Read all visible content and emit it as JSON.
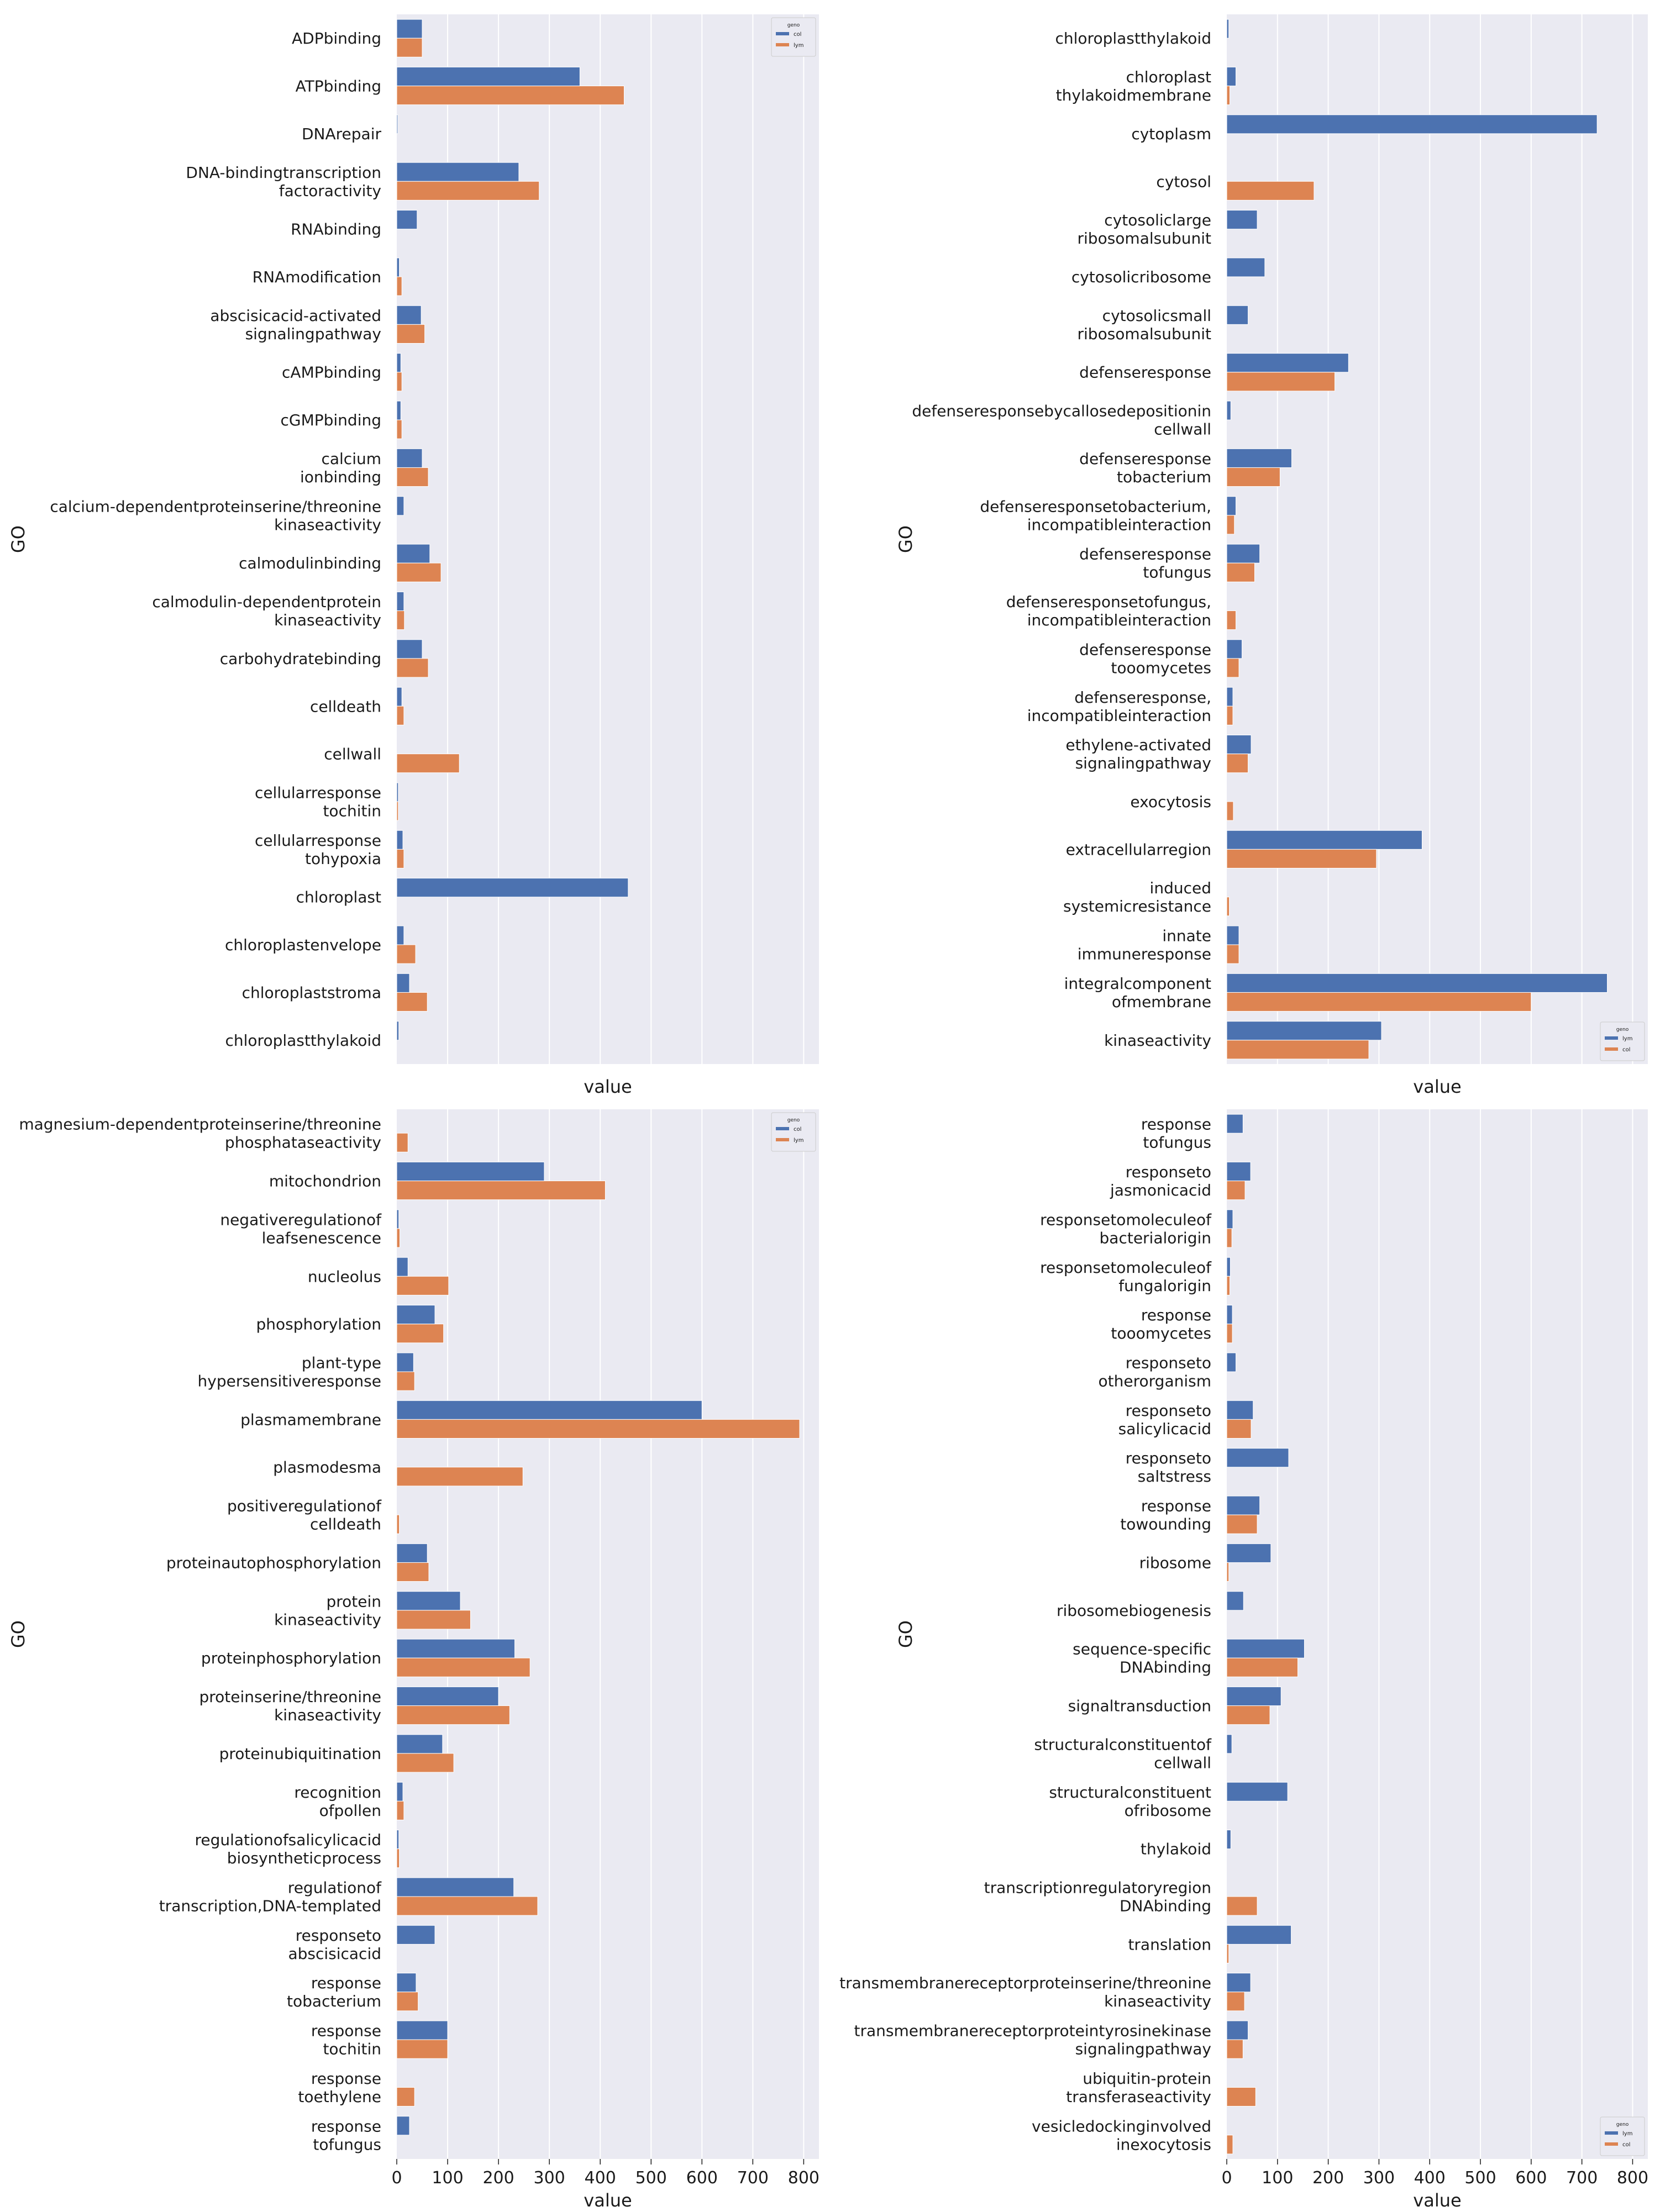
{
  "colors": {
    "background": "#eaeaf2",
    "grid": "#ffffff",
    "series_a": "#4c72b0",
    "series_b": "#dd8452",
    "text": "#1a1a1a"
  },
  "chart_data": [
    {
      "type": "bar",
      "orientation": "horizontal",
      "ylabel": "GO",
      "xlabel": "value",
      "xlim": [
        0,
        830
      ],
      "xticks_shown": false,
      "legend": {
        "title": "geno",
        "location": "top-right",
        "labels": [
          "col",
          "lym"
        ]
      },
      "series": [
        {
          "name": "col"
        },
        {
          "name": "lym"
        }
      ],
      "categories": [
        {
          "lines": [
            "ADPbinding"
          ],
          "values": [
            50,
            50
          ]
        },
        {
          "lines": [
            "ATPbinding"
          ],
          "values": [
            360,
            447
          ]
        },
        {
          "lines": [
            "DNArepair"
          ],
          "values": [
            2,
            0
          ]
        },
        {
          "lines": [
            "DNA-bindingtranscription",
            "factoractivity"
          ],
          "values": [
            240,
            280
          ]
        },
        {
          "lines": [
            "RNAbinding"
          ],
          "values": [
            40,
            0
          ]
        },
        {
          "lines": [
            "RNAmodification"
          ],
          "values": [
            5,
            10
          ]
        },
        {
          "lines": [
            "abscisicacid-activated",
            "signalingpathway"
          ],
          "values": [
            48,
            55
          ]
        },
        {
          "lines": [
            "cAMPbinding"
          ],
          "values": [
            8,
            10
          ]
        },
        {
          "lines": [
            "cGMPbinding"
          ],
          "values": [
            8,
            10
          ]
        },
        {
          "lines": [
            "calcium",
            "ionbinding"
          ],
          "values": [
            50,
            62
          ]
        },
        {
          "lines": [
            "calcium-dependentproteinserine/threonine",
            "kinaseactivity"
          ],
          "values": [
            14,
            0
          ]
        },
        {
          "lines": [
            "calmodulinbinding"
          ],
          "values": [
            65,
            87
          ]
        },
        {
          "lines": [
            "calmodulin-dependentprotein",
            "kinaseactivity"
          ],
          "values": [
            14,
            15
          ]
        },
        {
          "lines": [
            "carbohydratebinding"
          ],
          "values": [
            50,
            62
          ]
        },
        {
          "lines": [
            "celldeath"
          ],
          "values": [
            10,
            14
          ]
        },
        {
          "lines": [
            "cellwall"
          ],
          "values": [
            0,
            123
          ]
        },
        {
          "lines": [
            "cellularresponse",
            "tochitin"
          ],
          "values": [
            3,
            3
          ]
        },
        {
          "lines": [
            "cellularresponse",
            "tohypoxia"
          ],
          "values": [
            12,
            14
          ]
        },
        {
          "lines": [
            "chloroplast"
          ],
          "values": [
            455,
            0
          ]
        },
        {
          "lines": [
            "chloroplastenvelope"
          ],
          "values": [
            14,
            37
          ]
        },
        {
          "lines": [
            "chloroplaststroma"
          ],
          "values": [
            25,
            60
          ]
        },
        {
          "lines": [
            "chloroplastthylakoid"
          ],
          "values": [
            4,
            0
          ]
        }
      ]
    },
    {
      "type": "bar",
      "orientation": "horizontal",
      "ylabel": "GO",
      "xlabel": "value",
      "xlim": [
        0,
        830
      ],
      "xticks_shown": false,
      "legend": {
        "title": "geno",
        "location": "bottom-right",
        "labels": [
          "lym",
          "col"
        ]
      },
      "series": [
        {
          "name": "lym"
        },
        {
          "name": "col"
        }
      ],
      "categories": [
        {
          "lines": [
            "chloroplastthylakoid"
          ],
          "values": [
            4,
            0
          ]
        },
        {
          "lines": [
            "chloroplast",
            "thylakoidmembrane"
          ],
          "values": [
            18,
            6
          ]
        },
        {
          "lines": [
            "cytoplasm"
          ],
          "values": [
            730,
            0
          ]
        },
        {
          "lines": [
            "cytosol"
          ],
          "values": [
            0,
            172
          ]
        },
        {
          "lines": [
            "cytosoliclarge",
            "ribosomalsubunit"
          ],
          "values": [
            60,
            0
          ]
        },
        {
          "lines": [
            "cytosolicribosome"
          ],
          "values": [
            75,
            0
          ]
        },
        {
          "lines": [
            "cytosolicsmall",
            "ribosomalsubunit"
          ],
          "values": [
            42,
            0
          ]
        },
        {
          "lines": [
            "defenseresponse"
          ],
          "values": [
            240,
            213
          ]
        },
        {
          "lines": [
            "defenseresponsebycallosedepositionin",
            "cellwall"
          ],
          "values": [
            8,
            0
          ]
        },
        {
          "lines": [
            "defenseresponse",
            "tobacterium"
          ],
          "values": [
            128,
            105
          ]
        },
        {
          "lines": [
            "defenseresponsetobacterium,",
            "incompatibleinteraction"
          ],
          "values": [
            18,
            15
          ]
        },
        {
          "lines": [
            "defenseresponse",
            "tofungus"
          ],
          "values": [
            65,
            55
          ]
        },
        {
          "lines": [
            "defenseresponsetofungus,",
            "incompatibleinteraction"
          ],
          "values": [
            0,
            18
          ]
        },
        {
          "lines": [
            "defenseresponse",
            "tooomycetes"
          ],
          "values": [
            30,
            24
          ]
        },
        {
          "lines": [
            "defenseresponse,",
            "incompatibleinteraction"
          ],
          "values": [
            12,
            12
          ]
        },
        {
          "lines": [
            "ethylene-activated",
            "signalingpathway"
          ],
          "values": [
            48,
            42
          ]
        },
        {
          "lines": [
            "exocytosis"
          ],
          "values": [
            0,
            13
          ]
        },
        {
          "lines": [
            "extracellularregion"
          ],
          "values": [
            385,
            295
          ]
        },
        {
          "lines": [
            "induced",
            "systemicresistance"
          ],
          "values": [
            0,
            5
          ]
        },
        {
          "lines": [
            "innate",
            "immuneresponse"
          ],
          "values": [
            24,
            24
          ]
        },
        {
          "lines": [
            "integralcomponent",
            "ofmembrane"
          ],
          "values": [
            750,
            600
          ]
        },
        {
          "lines": [
            "kinaseactivity"
          ],
          "values": [
            305,
            280
          ]
        }
      ]
    },
    {
      "type": "bar",
      "orientation": "horizontal",
      "ylabel": "GO",
      "xlabel": "value",
      "xlim": [
        0,
        830
      ],
      "xticks": [
        0,
        100,
        200,
        300,
        400,
        500,
        600,
        700,
        800
      ],
      "xticks_shown": true,
      "legend": {
        "title": "geno",
        "location": "top-right",
        "labels": [
          "col",
          "lym"
        ]
      },
      "series": [
        {
          "name": "col"
        },
        {
          "name": "lym"
        }
      ],
      "categories": [
        {
          "lines": [
            "magnesium-dependentproteinserine/threonine",
            "phosphataseactivity"
          ],
          "values": [
            0,
            22
          ]
        },
        {
          "lines": [
            "mitochondrion"
          ],
          "values": [
            290,
            410
          ]
        },
        {
          "lines": [
            "negativeregulationof",
            "leafsenescence"
          ],
          "values": [
            4,
            6
          ]
        },
        {
          "lines": [
            "nucleolus"
          ],
          "values": [
            22,
            102
          ]
        },
        {
          "lines": [
            "phosphorylation"
          ],
          "values": [
            75,
            92
          ]
        },
        {
          "lines": [
            "plant-type",
            "hypersensitiveresponse"
          ],
          "values": [
            33,
            35
          ]
        },
        {
          "lines": [
            "plasmamembrane"
          ],
          "values": [
            600,
            792
          ]
        },
        {
          "lines": [
            "plasmodesma"
          ],
          "values": [
            0,
            248
          ]
        },
        {
          "lines": [
            "positiveregulationof",
            "celldeath"
          ],
          "values": [
            0,
            5
          ]
        },
        {
          "lines": [
            "proteinautophosphorylation"
          ],
          "values": [
            60,
            63
          ]
        },
        {
          "lines": [
            "protein",
            "kinaseactivity"
          ],
          "values": [
            125,
            145
          ]
        },
        {
          "lines": [
            "proteinphosphorylation"
          ],
          "values": [
            232,
            262
          ]
        },
        {
          "lines": [
            "proteinserine/threonine",
            "kinaseactivity"
          ],
          "values": [
            200,
            222
          ]
        },
        {
          "lines": [
            "proteinubiquitination"
          ],
          "values": [
            90,
            112
          ]
        },
        {
          "lines": [
            "recognition",
            "ofpollen"
          ],
          "values": [
            12,
            14
          ]
        },
        {
          "lines": [
            "regulationofsalicylicacid",
            "biosyntheticprocess"
          ],
          "values": [
            4,
            5
          ]
        },
        {
          "lines": [
            "regulationof",
            "transcription,DNA-templated"
          ],
          "values": [
            230,
            277
          ]
        },
        {
          "lines": [
            "responseto",
            "abscisicacid"
          ],
          "values": [
            75,
            0
          ]
        },
        {
          "lines": [
            "response",
            "tobacterium"
          ],
          "values": [
            38,
            42
          ]
        },
        {
          "lines": [
            "response",
            "tochitin"
          ],
          "values": [
            100,
            100
          ]
        },
        {
          "lines": [
            "response",
            "toethylene"
          ],
          "values": [
            0,
            35
          ]
        },
        {
          "lines": [
            "response",
            "tofungus"
          ],
          "values": [
            25,
            0
          ]
        }
      ]
    },
    {
      "type": "bar",
      "orientation": "horizontal",
      "ylabel": "GO",
      "xlabel": "value",
      "xlim": [
        0,
        830
      ],
      "xticks": [
        0,
        100,
        200,
        300,
        400,
        500,
        600,
        700,
        800
      ],
      "xticks_shown": true,
      "legend": {
        "title": "geno",
        "location": "bottom-right",
        "labels": [
          "lym",
          "col"
        ]
      },
      "series": [
        {
          "name": "lym"
        },
        {
          "name": "col"
        }
      ],
      "categories": [
        {
          "lines": [
            "response",
            "tofungus"
          ],
          "values": [
            32,
            0
          ]
        },
        {
          "lines": [
            "responseto",
            "jasmonicacid"
          ],
          "values": [
            47,
            36
          ]
        },
        {
          "lines": [
            "responsetomoleculeof",
            "bacterialorigin"
          ],
          "values": [
            12,
            10
          ]
        },
        {
          "lines": [
            "responsetomoleculeof",
            "fungalorigin"
          ],
          "values": [
            7,
            6
          ]
        },
        {
          "lines": [
            "response",
            "tooomycetes"
          ],
          "values": [
            11,
            11
          ]
        },
        {
          "lines": [
            "responseto",
            "otherorganism"
          ],
          "values": [
            18,
            0
          ]
        },
        {
          "lines": [
            "responseto",
            "salicylicacid"
          ],
          "values": [
            52,
            48
          ]
        },
        {
          "lines": [
            "responseto",
            "saltstress"
          ],
          "values": [
            122,
            0
          ]
        },
        {
          "lines": [
            "response",
            "towounding"
          ],
          "values": [
            65,
            60
          ]
        },
        {
          "lines": [
            "ribosome"
          ],
          "values": [
            87,
            4
          ]
        },
        {
          "lines": [
            "ribosomebiogenesis"
          ],
          "values": [
            33,
            0
          ]
        },
        {
          "lines": [
            "sequence-specific",
            "DNAbinding"
          ],
          "values": [
            153,
            140
          ]
        },
        {
          "lines": [
            "signaltransduction"
          ],
          "values": [
            107,
            85
          ]
        },
        {
          "lines": [
            "structuralconstituentof",
            "cellwall"
          ],
          "values": [
            10,
            0
          ]
        },
        {
          "lines": [
            "structuralconstituent",
            "ofribosome"
          ],
          "values": [
            120,
            0
          ]
        },
        {
          "lines": [
            "thylakoid"
          ],
          "values": [
            8,
            0
          ]
        },
        {
          "lines": [
            "transcriptionregulatoryregion",
            "DNAbinding"
          ],
          "values": [
            0,
            60
          ]
        },
        {
          "lines": [
            "translation"
          ],
          "values": [
            127,
            4
          ]
        },
        {
          "lines": [
            "transmembranereceptorproteinserine/threonine",
            "kinaseactivity"
          ],
          "values": [
            47,
            35
          ]
        },
        {
          "lines": [
            "transmembranereceptorproteintyrosinekinase",
            "signalingpathway"
          ],
          "values": [
            42,
            32
          ]
        },
        {
          "lines": [
            "ubiquitin-protein",
            "transferaseactivity"
          ],
          "values": [
            0,
            57
          ]
        },
        {
          "lines": [
            "vesicledockinginvolved",
            "inexocytosis"
          ],
          "values": [
            0,
            12
          ]
        }
      ]
    }
  ]
}
